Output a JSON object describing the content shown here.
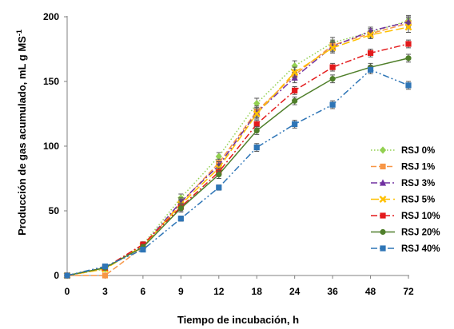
{
  "chart_data": {
    "type": "line",
    "title": "",
    "xlabel": "Tiempo de incubación, h",
    "ylabel": "Producción de gas acumulado, mL g MS",
    "ylabel_sup": "-1",
    "categories": [
      "0",
      "3",
      "6",
      "9",
      "12",
      "18",
      "24",
      "36",
      "48",
      "72"
    ],
    "ylim": [
      0,
      200
    ],
    "yticks": [
      "0",
      "50",
      "100",
      "150",
      "200"
    ],
    "grid": false,
    "legend_position": "right",
    "series": [
      {
        "name": "RSJ 0%",
        "color": "#92D050",
        "dash": "1.5 2.5",
        "marker": "diamond",
        "values": [
          0,
          5,
          24,
          60,
          92,
          133,
          162,
          180,
          188,
          197
        ],
        "errors": [
          0,
          1,
          2,
          3,
          3,
          4,
          4,
          4,
          3,
          4
        ]
      },
      {
        "name": "RSJ 1%",
        "color": "#F79646",
        "dash": "7 3",
        "marker": "square",
        "values": [
          0,
          0,
          22,
          56,
          87,
          127,
          155,
          178,
          187,
          195
        ],
        "errors": [
          0,
          1,
          2,
          3,
          3,
          4,
          4,
          4,
          3,
          4
        ]
      },
      {
        "name": "RSJ 3%",
        "color": "#7030A0",
        "dash": "8 3 2 3",
        "marker": "triangle",
        "values": [
          0,
          6,
          23,
          57,
          85,
          126,
          153,
          177,
          189,
          196
        ],
        "errors": [
          0,
          1,
          2,
          3,
          3,
          4,
          4,
          4,
          3,
          4
        ]
      },
      {
        "name": "RSJ 5%",
        "color": "#FFC000",
        "dash": "10 4",
        "marker": "x",
        "values": [
          0,
          5,
          23,
          55,
          83,
          125,
          157,
          176,
          186,
          192
        ],
        "errors": [
          0,
          1,
          2,
          3,
          3,
          4,
          4,
          4,
          3,
          4
        ]
      },
      {
        "name": "RSJ 10%",
        "color": "#E31A1C",
        "dash": "8 3 2 3",
        "marker": "square",
        "values": [
          0,
          6,
          24,
          53,
          80,
          117,
          143,
          161,
          172,
          179
        ],
        "errors": [
          0,
          1,
          2,
          3,
          3,
          3,
          3,
          3,
          3,
          3
        ]
      },
      {
        "name": "RSJ 20%",
        "color": "#4F7F2A",
        "dash": "",
        "marker": "circle",
        "values": [
          0,
          6,
          22,
          52,
          78,
          112,
          135,
          152,
          161,
          168
        ],
        "errors": [
          0,
          1,
          2,
          3,
          3,
          3,
          3,
          3,
          3,
          3
        ]
      },
      {
        "name": "RSJ 40%",
        "color": "#2E75B6",
        "dash": "8 3 2 3 2 3",
        "marker": "square",
        "values": [
          0,
          7,
          20,
          44,
          68,
          99,
          117,
          132,
          159,
          147
        ],
        "errors": [
          0,
          1,
          1,
          2,
          2,
          3,
          3,
          3,
          3,
          3
        ]
      }
    ]
  }
}
